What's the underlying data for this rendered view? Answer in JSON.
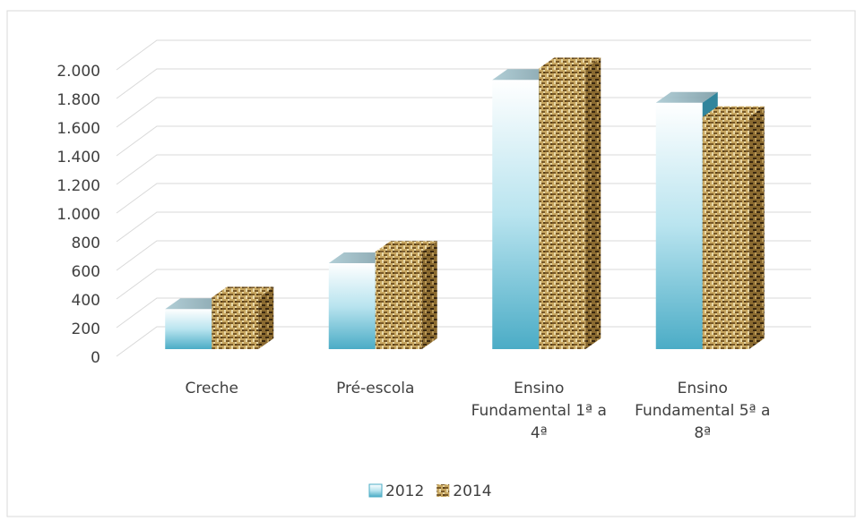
{
  "chart_data": {
    "type": "bar3d",
    "categories": [
      "Creche",
      "Pré-escola",
      "Ensino Fundamental 1ª a 4ª",
      "Ensino Fundamental 5ª a 8ª"
    ],
    "series": [
      {
        "name": "2012",
        "color": "#4bacc6",
        "values": [
          280,
          600,
          1880,
          1720
        ]
      },
      {
        "name": "2014",
        "color": "#a08040",
        "values": [
          360,
          680,
          1960,
          1620
        ]
      }
    ],
    "ylim": [
      0,
      2000
    ],
    "yticks": [
      0,
      200,
      400,
      600,
      800,
      {
        "value": 1000,
        "label": "1.000"
      },
      {
        "value": 1200,
        "label": "1.200"
      },
      {
        "value": 1400,
        "label": "1.400"
      },
      {
        "value": 1600,
        "label": "1.600"
      },
      {
        "value": 1800,
        "label": "1.800"
      },
      {
        "value": 2000,
        "label": "2.000"
      }
    ],
    "grid": true,
    "legend": "bottom"
  }
}
